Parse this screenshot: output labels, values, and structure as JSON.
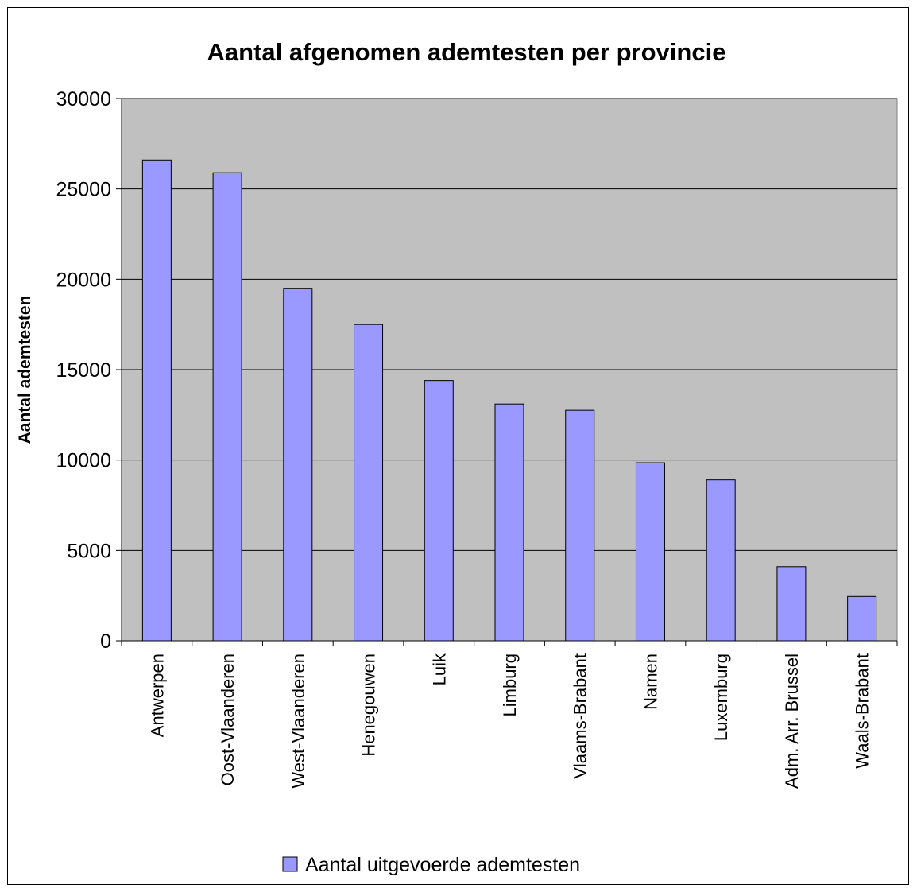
{
  "chart_data": {
    "type": "bar",
    "title": "Aantal afgenomen ademtesten per provincie",
    "ylabel": "Aantal ademtesten",
    "xlabel": "",
    "ylim": [
      0,
      30000
    ],
    "yticks": [
      0,
      5000,
      10000,
      15000,
      20000,
      25000,
      30000
    ],
    "grid": true,
    "legend_position": "bottom",
    "categories": [
      "Antwerpen",
      "Oost-Vlaanderen",
      "West-Vlaanderen",
      "Henegouwen",
      "Luik",
      "Limburg",
      "Vlaams-Brabant",
      "Namen",
      "Luxemburg",
      "Adm. Arr. Brussel",
      "Waals-Brabant"
    ],
    "series": [
      {
        "name": "Aantal uitgevoerde ademtesten",
        "values": [
          26600,
          25900,
          19500,
          17500,
          14400,
          13100,
          12750,
          9850,
          8900,
          4100,
          2450
        ]
      }
    ],
    "colors": {
      "bar_fill": "#9999ff",
      "plot_background": "#c0c0c0",
      "gridline": "#000000"
    }
  }
}
